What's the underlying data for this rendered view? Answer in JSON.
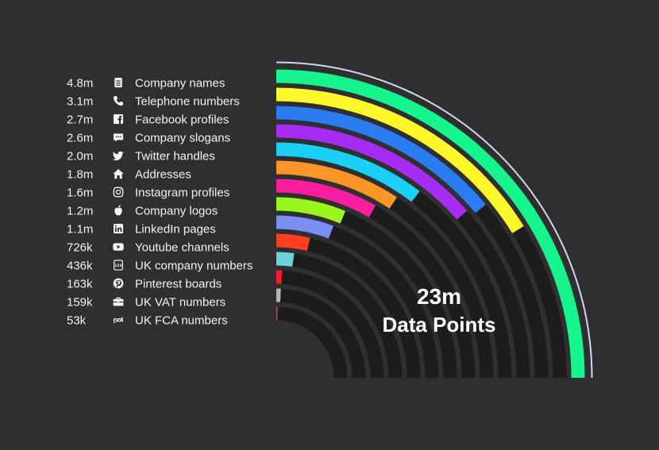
{
  "chart_data": {
    "type": "radial-bar",
    "total_value": "23m",
    "total_caption": "Data Points",
    "series": [
      {
        "label": "Company names",
        "value_text": "4.8m",
        "value": 4800000,
        "fraction": 1.0,
        "color": "#16f48d",
        "icon": "document-icon"
      },
      {
        "label": "Telephone numbers",
        "value_text": "3.1m",
        "value": 3100000,
        "fraction": 0.65,
        "color": "#fdf82b",
        "icon": "phone-icon"
      },
      {
        "label": "Facebook profiles",
        "value_text": "2.7m",
        "value": 2700000,
        "fraction": 0.56,
        "color": "#2b7bf1",
        "icon": "facebook-icon"
      },
      {
        "label": "Company slogans",
        "value_text": "2.6m",
        "value": 2600000,
        "fraction": 0.542,
        "color": "#a52cf2",
        "icon": "speech-bubble-icon"
      },
      {
        "label": "Twitter handles",
        "value_text": "2.0m",
        "value": 2000000,
        "fraction": 0.417,
        "color": "#1ad0f6",
        "icon": "twitter-icon"
      },
      {
        "label": "Addresses",
        "value_text": "1.8m",
        "value": 1800000,
        "fraction": 0.375,
        "color": "#fd9627",
        "icon": "home-icon"
      },
      {
        "label": "Instagram profiles",
        "value_text": "1.6m",
        "value": 1600000,
        "fraction": 0.333,
        "color": "#fc1e9e",
        "icon": "instagram-icon"
      },
      {
        "label": "Company logos",
        "value_text": "1.2m",
        "value": 1200000,
        "fraction": 0.25,
        "color": "#9bf61d",
        "icon": "apple-icon"
      },
      {
        "label": "LinkedIn pages",
        "value_text": "1.1m",
        "value": 1100000,
        "fraction": 0.229,
        "color": "#7b8ef1",
        "icon": "linkedin-icon"
      },
      {
        "label": "Youtube channels",
        "value_text": "726k",
        "value": 726000,
        "fraction": 0.151,
        "color": "#fc3f1d",
        "icon": "youtube-icon"
      },
      {
        "label": "UK company numbers",
        "value_text": "436k",
        "value": 436000,
        "fraction": 0.091,
        "color": "#6fd1db",
        "icon": "number-123-icon"
      },
      {
        "label": "Pinterest boards",
        "value_text": "163k",
        "value": 163000,
        "fraction": 0.034,
        "color": "#fd1a2c",
        "icon": "pinterest-icon"
      },
      {
        "label": "UK VAT numbers",
        "value_text": "159k",
        "value": 159000,
        "fraction": 0.033,
        "color": "#b5b5b5",
        "icon": "briefcase-icon"
      },
      {
        "label": "UK FCA numbers",
        "value_text": "53k",
        "value": 53000,
        "fraction": 0.011,
        "color": "#b4537e",
        "icon": "fca-icon"
      }
    ],
    "track_color": "#1c1c1d",
    "outline_color": "#ced8ee",
    "background": "#2f2f30"
  }
}
